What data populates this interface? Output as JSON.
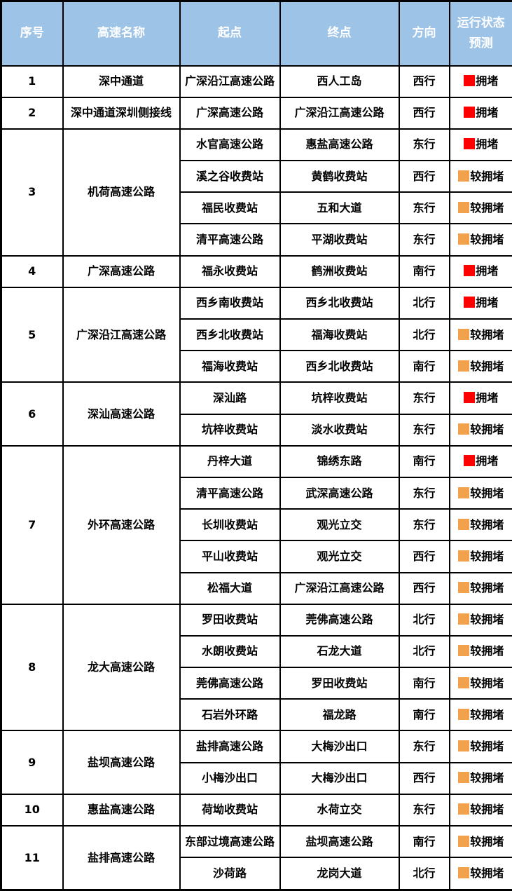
{
  "colors": {
    "header_bg": "#9DC3E6",
    "header_text": "#FFFFFF",
    "border": "#000000",
    "body_text": "#000000",
    "status": {
      "拥堵": "#FF0000",
      "较拥堵": "#F2A24C"
    }
  },
  "chart_data": {
    "type": "table",
    "columns": [
      "序号",
      "高速名称",
      "起点",
      "终点",
      "方向",
      "运行状态预测"
    ],
    "groups": [
      {
        "no": "1",
        "name": "深中通道",
        "segments": [
          {
            "start": "广深沿江高速公路",
            "end": "西人工岛",
            "direction": "西行",
            "status": "拥堵"
          }
        ]
      },
      {
        "no": "2",
        "name": "深中通道深圳侧接线",
        "segments": [
          {
            "start": "广深高速公路",
            "end": "广深沿江高速公路",
            "direction": "西行",
            "status": "拥堵"
          }
        ]
      },
      {
        "no": "3",
        "name": "机荷高速公路",
        "segments": [
          {
            "start": "水官高速公路",
            "end": "惠盐高速公路",
            "direction": "东行",
            "status": "拥堵"
          },
          {
            "start": "溪之谷收费站",
            "end": "黄鹤收费站",
            "direction": "西行",
            "status": "较拥堵"
          },
          {
            "start": "福民收费站",
            "end": "五和大道",
            "direction": "东行",
            "status": "较拥堵"
          },
          {
            "start": "清平高速公路",
            "end": "平湖收费站",
            "direction": "东行",
            "status": "较拥堵"
          }
        ]
      },
      {
        "no": "4",
        "name": "广深高速公路",
        "segments": [
          {
            "start": "福永收费站",
            "end": "鹤洲收费站",
            "direction": "南行",
            "status": "拥堵"
          }
        ]
      },
      {
        "no": "5",
        "name": "广深沿江高速公路",
        "segments": [
          {
            "start": "西乡南收费站",
            "end": "西乡北收费站",
            "direction": "北行",
            "status": "拥堵"
          },
          {
            "start": "西乡北收费站",
            "end": "福海收费站",
            "direction": "北行",
            "status": "较拥堵"
          },
          {
            "start": "福海收费站",
            "end": "西乡北收费站",
            "direction": "南行",
            "status": "较拥堵"
          }
        ]
      },
      {
        "no": "6",
        "name": "深汕高速公路",
        "segments": [
          {
            "start": "深汕路",
            "end": "坑梓收费站",
            "direction": "东行",
            "status": "拥堵"
          },
          {
            "start": "坑梓收费站",
            "end": "淡水收费站",
            "direction": "东行",
            "status": "较拥堵"
          }
        ]
      },
      {
        "no": "7",
        "name": "外环高速公路",
        "segments": [
          {
            "start": "丹梓大道",
            "end": "锦绣东路",
            "direction": "南行",
            "status": "拥堵"
          },
          {
            "start": "清平高速公路",
            "end": "武深高速公路",
            "direction": "东行",
            "status": "较拥堵"
          },
          {
            "start": "长圳收费站",
            "end": "观光立交",
            "direction": "东行",
            "status": "较拥堵"
          },
          {
            "start": "平山收费站",
            "end": "观光立交",
            "direction": "西行",
            "status": "较拥堵"
          },
          {
            "start": "松福大道",
            "end": "广深沿江高速公路",
            "direction": "西行",
            "status": "较拥堵"
          }
        ]
      },
      {
        "no": "8",
        "name": "龙大高速公路",
        "segments": [
          {
            "start": "罗田收费站",
            "end": "莞佛高速公路",
            "direction": "北行",
            "status": "较拥堵"
          },
          {
            "start": "水朗收费站",
            "end": "石龙大道",
            "direction": "北行",
            "status": "较拥堵"
          },
          {
            "start": "莞佛高速公路",
            "end": "罗田收费站",
            "direction": "南行",
            "status": "较拥堵"
          },
          {
            "start": "石岩外环路",
            "end": "福龙路",
            "direction": "南行",
            "status": "较拥堵"
          }
        ]
      },
      {
        "no": "9",
        "name": "盐坝高速公路",
        "segments": [
          {
            "start": "盐排高速公路",
            "end": "大梅沙出口",
            "direction": "东行",
            "status": "较拥堵"
          },
          {
            "start": "小梅沙出口",
            "end": "大梅沙出口",
            "direction": "西行",
            "status": "较拥堵"
          }
        ]
      },
      {
        "no": "10",
        "name": "惠盐高速公路",
        "segments": [
          {
            "start": "荷坳收费站",
            "end": "水荷立交",
            "direction": "东行",
            "status": "较拥堵"
          }
        ]
      },
      {
        "no": "11",
        "name": "盐排高速公路",
        "segments": [
          {
            "start": "东部过境高速公路",
            "end": "盐坝高速公路",
            "direction": "南行",
            "status": "较拥堵"
          },
          {
            "start": "沙荷路",
            "end": "龙岗大道",
            "direction": "北行",
            "status": "较拥堵"
          }
        ]
      }
    ]
  }
}
